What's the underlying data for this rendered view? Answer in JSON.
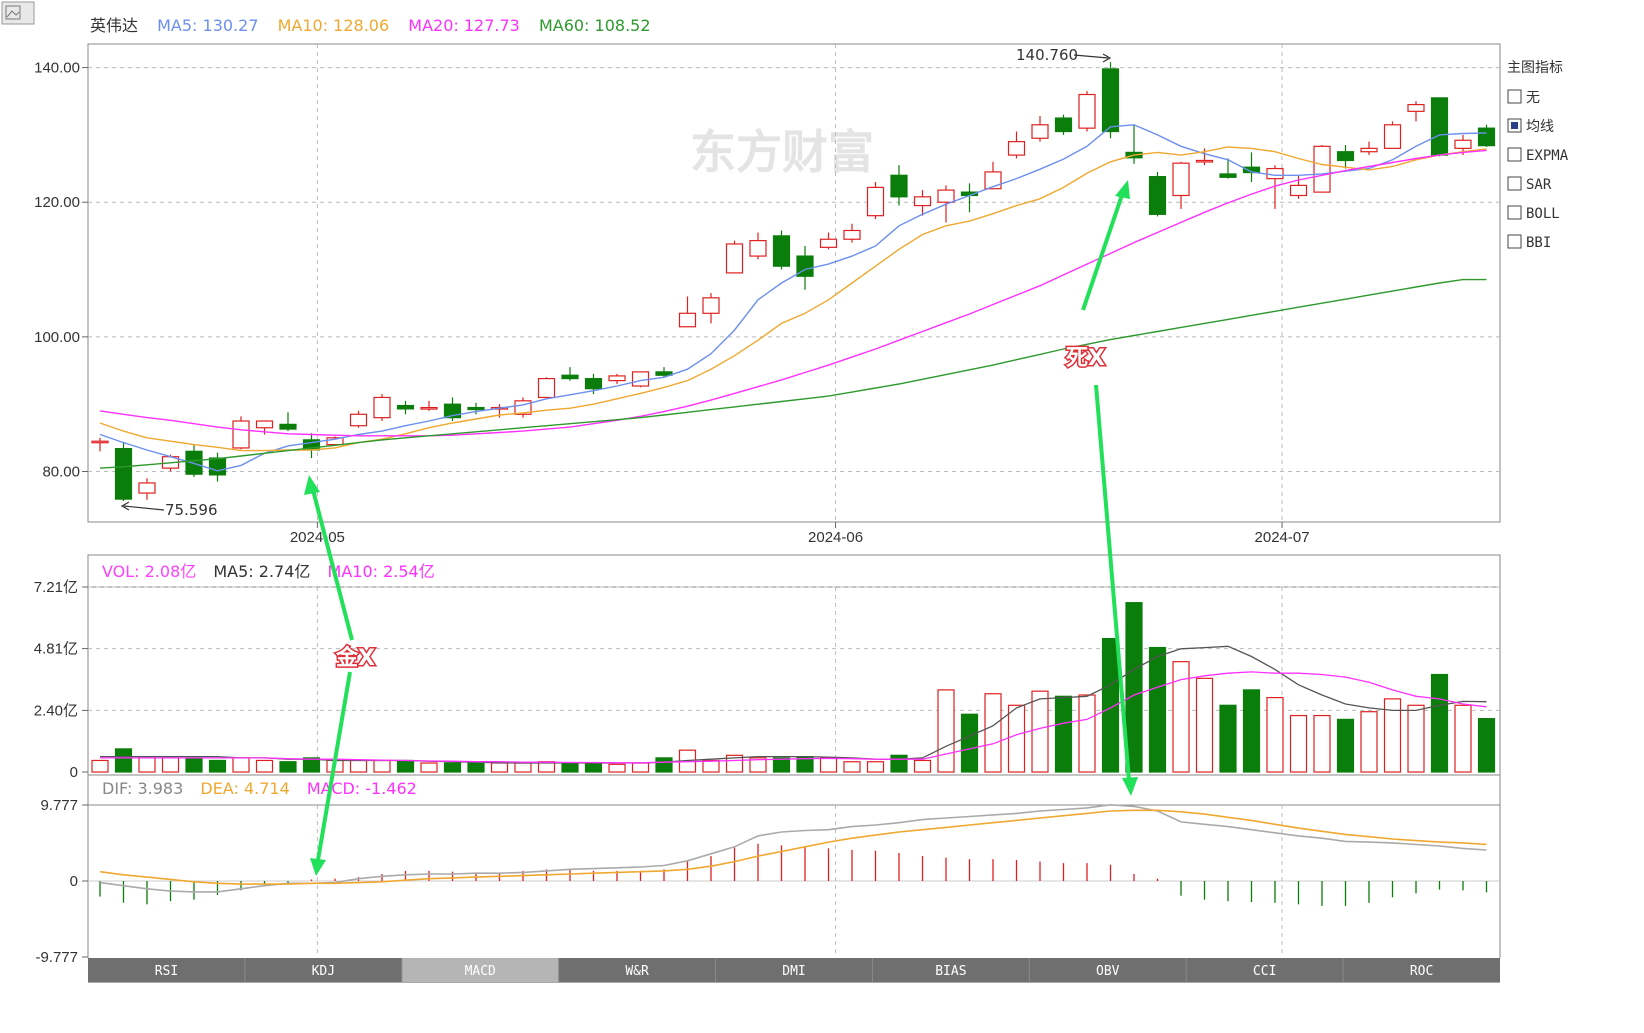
{
  "corner_icon": "image-placeholder-icon",
  "watermark": "东方财富",
  "price_legend": {
    "name": "英伟达",
    "ma5": "MA5: 130.27",
    "ma10": "MA10: 128.06",
    "ma20": "MA20: 127.73",
    "ma60": "MA60: 108.52",
    "colors": {
      "ma5": "#6c8ff0",
      "ma10": "#f0a830",
      "ma20": "#ff30ff",
      "ma60": "#2e9a2e",
      "up": "#e02020",
      "down": "#0a7d0a"
    }
  },
  "vol_legend": {
    "vol": "VOL: 2.08亿",
    "ma5": "MA5: 2.74亿",
    "ma10": "MA10: 2.54亿"
  },
  "macd_legend": {
    "dif": "DIF: 3.983",
    "dea": "DEA: 4.714",
    "macd": "MACD: -1.462"
  },
  "annotations": {
    "high_label": "140.760",
    "low_label": "75.596",
    "golden_cross": "金X",
    "death_cross": "死X"
  },
  "side_panel": {
    "title": "主图指标",
    "options": [
      {
        "label": "无",
        "checked": false
      },
      {
        "label": "均线",
        "checked": true
      },
      {
        "label": "EXPMA",
        "checked": false
      },
      {
        "label": "SAR",
        "checked": false
      },
      {
        "label": "BOLL",
        "checked": false
      },
      {
        "label": "BBI",
        "checked": false
      }
    ]
  },
  "tabs": [
    {
      "label": "RSI",
      "active": false
    },
    {
      "label": "KDJ",
      "active": false
    },
    {
      "label": "MACD",
      "active": true
    },
    {
      "label": "W&R",
      "active": false
    },
    {
      "label": "DMI",
      "active": false
    },
    {
      "label": "BIAS",
      "active": false
    },
    {
      "label": "OBV",
      "active": false
    },
    {
      "label": "CCI",
      "active": false
    },
    {
      "label": "ROC",
      "active": false
    }
  ],
  "chart_data": [
    {
      "type": "candlestick",
      "name": "英伟达",
      "ylim": [
        72.5,
        143.5
      ],
      "y_ticks": [
        "140.00",
        "120.00",
        "100.00",
        "80.00"
      ],
      "y_tick_values": [
        140,
        120,
        100,
        80
      ],
      "x_ticks": [
        "2024-05",
        "2024-06",
        "2024-07"
      ],
      "x_tick_index": [
        9.25,
        31.3,
        50.3
      ],
      "grid": true,
      "candles": [
        [
          84.5,
          85.0,
          83.0,
          84.5
        ],
        [
          83.4,
          84.4,
          75.6,
          75.9
        ],
        [
          76.8,
          79.0,
          75.8,
          78.3
        ],
        [
          80.5,
          82.5,
          80.0,
          82.2
        ],
        [
          83.0,
          84.0,
          79.2,
          79.6
        ],
        [
          82.0,
          82.8,
          78.5,
          79.5
        ],
        [
          83.5,
          88.2,
          83.3,
          87.5
        ],
        [
          86.5,
          87.5,
          85.5,
          87.5
        ],
        [
          87.0,
          88.8,
          86.0,
          86.3
        ],
        [
          84.7,
          85.7,
          82.0,
          83.2
        ],
        [
          84.0,
          85.2,
          83.8,
          85.0
        ],
        [
          86.8,
          89.0,
          86.5,
          88.5
        ],
        [
          88.0,
          91.5,
          87.5,
          91.0
        ],
        [
          89.8,
          90.5,
          88.5,
          89.3
        ],
        [
          89.5,
          90.5,
          89.0,
          89.5
        ],
        [
          90.0,
          91.0,
          87.5,
          88.0
        ],
        [
          89.5,
          90.2,
          88.5,
          89.2
        ],
        [
          89.5,
          90.0,
          88.0,
          89.5
        ],
        [
          88.5,
          91.0,
          88.0,
          90.5
        ],
        [
          91.0,
          94.0,
          91.0,
          93.8
        ],
        [
          94.3,
          95.5,
          93.5,
          93.8
        ],
        [
          93.8,
          94.5,
          91.5,
          92.3
        ],
        [
          93.5,
          94.5,
          93.0,
          94.2
        ],
        [
          92.7,
          94.8,
          92.5,
          94.8
        ],
        [
          94.8,
          95.5,
          94.0,
          94.3
        ],
        [
          101.5,
          106.0,
          101.5,
          103.5
        ],
        [
          103.5,
          106.5,
          102.0,
          105.8
        ],
        [
          109.5,
          114.3,
          109.5,
          113.8
        ],
        [
          112.0,
          115.5,
          111.5,
          114.3
        ],
        [
          115.0,
          115.8,
          110.0,
          110.5
        ],
        [
          112.0,
          113.5,
          107.0,
          109.0
        ],
        [
          113.3,
          115.5,
          113.0,
          114.5
        ],
        [
          114.5,
          116.8,
          114.0,
          115.8
        ],
        [
          118.0,
          123.0,
          117.5,
          122.2
        ],
        [
          124.0,
          125.5,
          119.5,
          120.8
        ],
        [
          119.5,
          121.8,
          118.0,
          120.8
        ],
        [
          120.0,
          122.5,
          117.0,
          121.8
        ],
        [
          121.5,
          122.8,
          118.5,
          121.0
        ],
        [
          122.0,
          126.0,
          122.0,
          124.5
        ],
        [
          127.0,
          130.5,
          126.5,
          129.0
        ],
        [
          129.5,
          132.8,
          129.0,
          131.5
        ],
        [
          132.5,
          133.0,
          130.0,
          130.5
        ],
        [
          131.0,
          136.5,
          130.5,
          136.0
        ],
        [
          139.8,
          140.8,
          129.5,
          130.5
        ],
        [
          127.4,
          131.5,
          125.7,
          126.6
        ],
        [
          123.8,
          124.5,
          117.9,
          118.2
        ],
        [
          121.0,
          126.0,
          119.0,
          125.8
        ],
        [
          126.0,
          128.0,
          125.5,
          126.2
        ],
        [
          124.2,
          126.5,
          123.5,
          123.7
        ],
        [
          125.2,
          127.4,
          123.0,
          124.4
        ],
        [
          123.5,
          125.5,
          119.0,
          125.0
        ],
        [
          121.0,
          124.0,
          120.5,
          122.5
        ],
        [
          121.5,
          128.5,
          121.5,
          128.3
        ],
        [
          127.5,
          128.5,
          125.0,
          126.2
        ],
        [
          127.5,
          129.0,
          127.0,
          128.0
        ],
        [
          128.0,
          132.0,
          128.0,
          131.5
        ],
        [
          133.5,
          135.0,
          132.0,
          134.5
        ],
        [
          135.5,
          135.5,
          126.8,
          127.0
        ],
        [
          128.0,
          130.0,
          127.0,
          129.2
        ],
        [
          131.0,
          131.5,
          128.2,
          128.4
        ]
      ],
      "series": [
        {
          "name": "MA5",
          "values": [
            85.5,
            84.3,
            83.2,
            82.2,
            81.2,
            80.1,
            80.9,
            82.7,
            83.8,
            84.3,
            84.8,
            85.5,
            86.0,
            86.8,
            87.5,
            88.3,
            88.9,
            89.4,
            89.9,
            90.8,
            91.4,
            92.0,
            92.7,
            93.5,
            94.0,
            95.2,
            97.5,
            101.0,
            105.5,
            108.0,
            110.0,
            110.8,
            112.0,
            113.5,
            116.5,
            118.2,
            119.7,
            121.0,
            122.3,
            123.5,
            124.9,
            126.4,
            128.3,
            131.2,
            131.5,
            130.0,
            128.3,
            127.2,
            126.3,
            124.5,
            124.0,
            124.0,
            124.2,
            124.6,
            125.0,
            126.3,
            128.3,
            130.0,
            130.2,
            130.3
          ]
        },
        {
          "name": "MA10",
          "values": [
            87.2,
            86.0,
            85.0,
            84.5,
            84.0,
            83.6,
            83.1,
            83.1,
            83.2,
            83.2,
            83.5,
            84.3,
            84.8,
            85.6,
            86.5,
            87.2,
            87.8,
            88.4,
            88.7,
            89.1,
            89.4,
            90.0,
            90.8,
            91.6,
            92.5,
            93.5,
            95.2,
            97.2,
            99.5,
            102.0,
            103.5,
            105.5,
            108.0,
            110.5,
            113.0,
            115.2,
            116.5,
            117.2,
            118.3,
            119.5,
            120.5,
            122.2,
            124.3,
            126.0,
            127.0,
            127.4,
            127.0,
            127.5,
            128.2,
            128.0,
            127.5,
            126.5,
            125.6,
            125.2,
            124.8,
            125.3,
            126.3,
            127.0,
            127.5,
            127.9
          ]
        },
        {
          "name": "MA20",
          "values": [
            89.0,
            88.5,
            88.0,
            87.6,
            87.1,
            86.6,
            86.2,
            85.9,
            85.6,
            85.5,
            85.4,
            85.3,
            85.3,
            85.3,
            85.3,
            85.4,
            85.6,
            85.8,
            86.0,
            86.3,
            86.6,
            87.1,
            87.6,
            88.2,
            88.9,
            89.7,
            90.6,
            91.6,
            92.6,
            93.6,
            94.7,
            95.8,
            97.0,
            98.2,
            99.5,
            100.8,
            102.1,
            103.4,
            104.8,
            106.2,
            107.6,
            109.2,
            110.8,
            112.4,
            114.0,
            115.5,
            117.0,
            118.5,
            119.9,
            121.2,
            122.4,
            123.3,
            124.0,
            124.7,
            125.3,
            125.9,
            126.5,
            127.0,
            127.4,
            127.7
          ]
        },
        {
          "name": "MA60",
          "values": [
            80.5,
            80.7,
            81.0,
            81.3,
            81.6,
            81.9,
            82.3,
            82.7,
            83.1,
            83.5,
            83.9,
            84.3,
            84.7,
            85.0,
            85.3,
            85.6,
            85.9,
            86.2,
            86.5,
            86.8,
            87.1,
            87.4,
            87.7,
            88.0,
            88.4,
            88.8,
            89.2,
            89.6,
            90.0,
            90.4,
            90.8,
            91.2,
            91.8,
            92.4,
            93.0,
            93.7,
            94.4,
            95.1,
            95.8,
            96.6,
            97.4,
            98.2,
            98.9,
            99.6,
            100.2,
            100.8,
            101.4,
            102.0,
            102.6,
            103.2,
            103.8,
            104.4,
            105.0,
            105.6,
            106.2,
            106.8,
            107.4,
            108.0,
            108.5,
            108.5
          ]
        }
      ]
    },
    {
      "type": "bar",
      "name": "VOL",
      "unit": "亿",
      "ylim": [
        0,
        7.21
      ],
      "y_ticks": [
        "7.21亿",
        "4.81亿",
        "2.40亿",
        "0"
      ],
      "y_tick_values": [
        7.21,
        4.81,
        2.4,
        0
      ],
      "values": [
        0.45,
        0.9,
        0.6,
        0.55,
        0.55,
        0.45,
        0.55,
        0.45,
        0.4,
        0.55,
        0.45,
        0.45,
        0.45,
        0.45,
        0.35,
        0.35,
        0.35,
        0.35,
        0.35,
        0.4,
        0.35,
        0.35,
        0.3,
        0.35,
        0.55,
        0.85,
        0.45,
        0.65,
        0.55,
        0.55,
        0.6,
        0.55,
        0.4,
        0.4,
        0.65,
        0.45,
        3.2,
        2.25,
        3.05,
        2.6,
        3.15,
        2.95,
        3.0,
        5.2,
        6.6,
        4.85,
        4.3,
        3.65,
        2.6,
        3.2,
        2.9,
        2.2,
        2.2,
        2.05,
        2.35,
        2.85,
        2.6,
        3.8,
        2.6,
        2.08
      ],
      "series": [
        {
          "name": "MA5",
          "values": [
            0.6,
            0.6,
            0.6,
            0.6,
            0.6,
            0.6,
            0.55,
            0.55,
            0.5,
            0.5,
            0.45,
            0.45,
            0.45,
            0.45,
            0.42,
            0.4,
            0.38,
            0.36,
            0.35,
            0.35,
            0.36,
            0.35,
            0.35,
            0.35,
            0.38,
            0.45,
            0.5,
            0.55,
            0.6,
            0.6,
            0.6,
            0.58,
            0.55,
            0.5,
            0.5,
            0.55,
            1.0,
            1.4,
            1.8,
            2.5,
            2.85,
            2.9,
            2.95,
            3.4,
            4.0,
            4.5,
            4.8,
            4.85,
            4.9,
            4.5,
            4.0,
            3.4,
            3.0,
            2.65,
            2.5,
            2.4,
            2.4,
            2.6,
            2.75,
            2.74
          ]
        },
        {
          "name": "MA10",
          "values": [
            0.55,
            0.55,
            0.55,
            0.55,
            0.55,
            0.55,
            0.55,
            0.55,
            0.52,
            0.5,
            0.5,
            0.48,
            0.46,
            0.45,
            0.43,
            0.42,
            0.4,
            0.4,
            0.38,
            0.38,
            0.37,
            0.37,
            0.36,
            0.36,
            0.38,
            0.4,
            0.42,
            0.45,
            0.48,
            0.5,
            0.52,
            0.53,
            0.52,
            0.5,
            0.5,
            0.5,
            0.7,
            0.9,
            1.1,
            1.45,
            1.7,
            1.9,
            2.05,
            2.5,
            3.0,
            3.3,
            3.6,
            3.75,
            3.85,
            3.9,
            3.85,
            3.85,
            3.8,
            3.7,
            3.5,
            3.2,
            2.95,
            2.85,
            2.65,
            2.54
          ]
        }
      ]
    },
    {
      "type": "bar",
      "name": "MACD",
      "ylim": [
        -9.777,
        9.777
      ],
      "y_ticks": [
        "9.777",
        "0",
        "-9.777"
      ],
      "y_tick_values": [
        9.777,
        0,
        -9.777
      ],
      "values": [
        -2.0,
        -2.8,
        -3.0,
        -2.6,
        -2.4,
        -1.8,
        -1.2,
        -0.6,
        -0.3,
        0.2,
        0.3,
        0.5,
        0.9,
        1.3,
        1.3,
        1.2,
        1.1,
        1.1,
        1.3,
        1.5,
        1.5,
        1.3,
        1.3,
        1.3,
        1.5,
        2.7,
        3.2,
        4.3,
        4.8,
        4.6,
        4.4,
        4.2,
        4.0,
        3.9,
        3.6,
        3.2,
        3.0,
        2.8,
        2.8,
        2.7,
        2.5,
        2.3,
        2.3,
        2.1,
        0.9,
        0.3,
        -1.9,
        -2.4,
        -2.6,
        -2.7,
        -2.8,
        -3.0,
        -3.2,
        -3.2,
        -2.8,
        -2.1,
        -1.6,
        -1.1,
        -1.2,
        -1.46
      ],
      "series": [
        {
          "name": "DIF",
          "values": [
            -0.2,
            -0.6,
            -1.0,
            -1.3,
            -1.4,
            -1.4,
            -1.0,
            -0.6,
            -0.3,
            -0.3,
            -0.2,
            0.3,
            0.6,
            0.8,
            0.9,
            0.9,
            1.0,
            1.0,
            1.1,
            1.3,
            1.5,
            1.6,
            1.7,
            1.8,
            2.0,
            2.6,
            3.5,
            4.4,
            5.8,
            6.3,
            6.5,
            6.6,
            7.0,
            7.2,
            7.5,
            7.9,
            8.1,
            8.3,
            8.5,
            8.7,
            9.0,
            9.2,
            9.4,
            9.8,
            9.6,
            9.0,
            7.6,
            7.3,
            7.0,
            6.6,
            6.2,
            5.8,
            5.5,
            5.1,
            5.0,
            4.9,
            4.7,
            4.5,
            4.2,
            3.983
          ]
        },
        {
          "name": "DEA",
          "values": [
            1.2,
            0.8,
            0.5,
            0.2,
            -0.1,
            -0.3,
            -0.4,
            -0.4,
            -0.4,
            -0.3,
            -0.3,
            -0.2,
            -0.1,
            0.1,
            0.3,
            0.4,
            0.5,
            0.6,
            0.7,
            0.8,
            0.9,
            1.0,
            1.1,
            1.2,
            1.3,
            1.5,
            1.9,
            2.5,
            3.2,
            3.8,
            4.4,
            5.0,
            5.5,
            5.9,
            6.3,
            6.6,
            6.9,
            7.2,
            7.5,
            7.8,
            8.1,
            8.4,
            8.7,
            9.0,
            9.1,
            9.1,
            8.9,
            8.6,
            8.2,
            7.8,
            7.3,
            6.8,
            6.4,
            6.0,
            5.7,
            5.4,
            5.2,
            5.0,
            4.9,
            4.714
          ]
        }
      ]
    }
  ]
}
